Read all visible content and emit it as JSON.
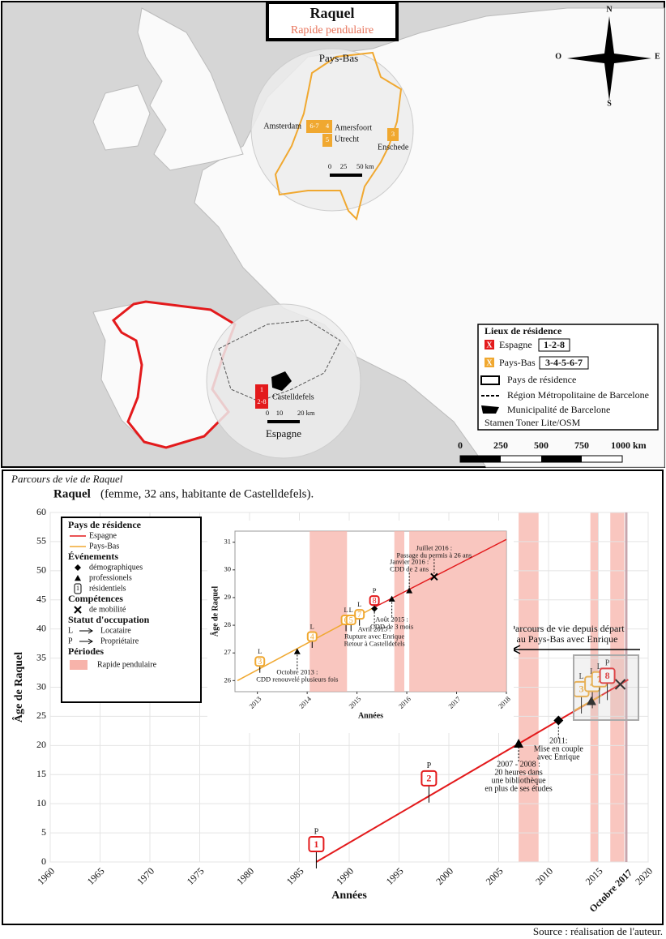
{
  "map": {
    "title": "Raquel",
    "subtitle": "Rapide pendulaire",
    "compass": [
      "N",
      "E",
      "S",
      "O"
    ],
    "places": [
      "Pays-Bas",
      "Amsterdam",
      "Amersfoort",
      "Utrecht",
      "Enschede",
      "Castelldefels",
      "Espagne"
    ],
    "residences": [
      "6-7",
      "4",
      "5",
      "3",
      "1",
      "2-8"
    ],
    "inset_scales": [
      [
        "0",
        "25",
        "50 km"
      ],
      [
        "0",
        "10",
        "20 km"
      ]
    ],
    "legend": {
      "title": "Lieux de résidence",
      "items": [
        {
          "marker": "X",
          "label": "Espagne",
          "ids": "1-2-8",
          "color": "#e31a1c"
        },
        {
          "marker": "X",
          "label": "Pays-Bas",
          "ids": "3-4-5-6-7",
          "color": "#f0a830"
        }
      ],
      "symbols": [
        "Pays de résidence",
        "Région Métropolitaine de Barcelone",
        "Municipalité de Barcelone"
      ],
      "credit": "Stamen Toner Lite/OSM"
    },
    "scale": [
      "0",
      "250",
      "500",
      "750",
      "1000 km"
    ]
  },
  "chart_data": [
    {
      "type": "line",
      "title": "Parcours de vie de Raquel",
      "subject": "Raquel",
      "subtitle": "(femme, 32 ans, habitante de Castelldefels).",
      "xlabel": "Années",
      "ylabel": "Âge de Raquel",
      "xlim": [
        1960,
        2020
      ],
      "xticks": [
        1960,
        1965,
        1970,
        1975,
        1980,
        1985,
        1990,
        1995,
        2000,
        2005,
        2010,
        2015,
        2020
      ],
      "ylim": [
        0,
        60
      ],
      "yticks": [
        0,
        5,
        10,
        15,
        20,
        25,
        30,
        35,
        40,
        45,
        50,
        55,
        60
      ],
      "grid": true,
      "marker_line": {
        "value": 2017.8,
        "label": "Octobre 2017"
      },
      "series": [
        {
          "name": "Espagne",
          "color": "#e31a1c",
          "x": [
            1986.7,
            2018
          ],
          "values": [
            0,
            31.3
          ]
        },
        {
          "name": "Pays-Bas",
          "color": "#f0a830",
          "x": [
            2012.6,
            2015.35
          ],
          "values": [
            26,
            28.65
          ]
        }
      ],
      "periods": {
        "name": "Rapide pendulaire",
        "color": "#f7b3aa",
        "ranges": [
          [
            2007,
            2009
          ],
          [
            2014.2,
            2015
          ],
          [
            2016.2,
            2017.6
          ]
        ]
      },
      "events": [
        {
          "symbol": "triangle",
          "x": 2007,
          "y": 20.3,
          "text": [
            "2007 - 2008 :",
            "20 heures dans",
            "une bibliothèque",
            "en plus de ses études"
          ]
        },
        {
          "symbol": "diamond",
          "x": 2011,
          "y": 24.3,
          "text": [
            "2011:",
            "Mise en couple",
            "avec Enrique"
          ]
        },
        {
          "symbol": "triangle",
          "x": 2014.3,
          "y": 27.6,
          "text": []
        },
        {
          "symbol": "cross",
          "x": 2017.2,
          "y": 30.5,
          "text": []
        }
      ],
      "residences": [
        {
          "label": "1",
          "x": 1986.7,
          "y": 0,
          "status": "P",
          "color": "#e31a1c"
        },
        {
          "label": "2",
          "x": 1998,
          "y": 11.3,
          "status": "P",
          "color": "#e31a1c"
        },
        {
          "label": "3",
          "x": 2013.3,
          "y": 26.6,
          "status": "L",
          "color": "#f0a830"
        },
        {
          "label": "4",
          "x": 2014.4,
          "y": 27.5,
          "status": "L",
          "color": "#f0a830"
        },
        {
          "label": "7",
          "x": 2015.1,
          "y": 28.3,
          "status": "L",
          "color": "#f0a830"
        },
        {
          "label": "8",
          "x": 2015.9,
          "y": 28.9,
          "status": "P",
          "color": "#e31a1c"
        }
      ],
      "annotation": [
        "Parcours de vie depuis départ",
        "au Pays-Bas avec Enrique"
      ],
      "legend": {
        "country_title": "Pays de résidence",
        "events_title": "Événements",
        "events": [
          "démographiques",
          "professionels",
          "résidentiels"
        ],
        "skills_title": "Compétences",
        "skills": [
          "de mobilité"
        ],
        "status_title": "Statut d'occupation",
        "status": [
          {
            "code": "L",
            "label": "Locataire"
          },
          {
            "code": "P",
            "label": "Propriétaire"
          }
        ],
        "periods_title": "Périodes",
        "residence_symbol": "1"
      },
      "source": "Source : réalisation de l'auteur."
    },
    {
      "type": "line",
      "xlabel": "Années",
      "ylabel": "Âge de Raquel",
      "xlim": [
        2012.55,
        2018
      ],
      "xticks": [
        2013,
        2014,
        2015,
        2016,
        2017,
        2018
      ],
      "ylim": [
        25.6,
        31.4
      ],
      "yticks": [
        26,
        27,
        28,
        29,
        30,
        31
      ],
      "grid": false,
      "series": [
        {
          "name": "Espagne",
          "color": "#e31a1c",
          "x": [
            2015.35,
            2018
          ],
          "values": [
            28.65,
            31.1
          ]
        },
        {
          "name": "Pays-Bas",
          "color": "#f0a830",
          "x": [
            2012.6,
            2015.35
          ],
          "values": [
            26,
            28.65
          ]
        }
      ],
      "periods": {
        "name": "Rapide pendulaire",
        "color": "#f7b3aa",
        "ranges": [
          [
            2014.05,
            2014.8
          ],
          [
            2015.75,
            2015.95
          ],
          [
            2016.05,
            2018
          ]
        ]
      },
      "events": [
        {
          "symbol": "triangle",
          "x": 2013.8,
          "y": 27.05,
          "text": [
            "Octobre 2013 :",
            "CDD renouvelé plusieurs fois"
          ]
        },
        {
          "symbol": "diamond",
          "x": 2015.35,
          "y": 28.6,
          "text": [
            "Avril 2015 :",
            "Rupture avec Enrique",
            "Retour à Castelldefels"
          ]
        },
        {
          "symbol": "triangle",
          "x": 2015.7,
          "y": 28.95,
          "text": [
            "Août 2015 :",
            "CDD de 3 mois"
          ]
        },
        {
          "symbol": "triangle",
          "x": 2016.05,
          "y": 29.25,
          "text": [
            "Janvier 2016 :",
            "CDD de 2 ans"
          ]
        },
        {
          "symbol": "cross",
          "x": 2016.55,
          "y": 29.75,
          "text": [
            "Juillet 2016 :",
            "Passage du permis à 26 ans"
          ]
        }
      ],
      "residences": [
        {
          "label": "3",
          "x": 2013.05,
          "y": 26.4,
          "status": "L",
          "color": "#f0a830"
        },
        {
          "label": "4",
          "x": 2014.1,
          "y": 27.3,
          "status": "L",
          "color": "#f0a830"
        },
        {
          "label": "6",
          "x": 2014.78,
          "y": 27.9,
          "status": "L",
          "color": "#f0a830"
        },
        {
          "label": "5",
          "x": 2014.88,
          "y": 27.9,
          "status": "L",
          "color": "#f0a830"
        },
        {
          "label": "7",
          "x": 2015.05,
          "y": 28.1,
          "status": "L",
          "color": "#f0a830"
        },
        {
          "label": "8",
          "x": 2015.35,
          "y": 28.6,
          "status": "P",
          "color": "#e31a1c"
        }
      ]
    }
  ]
}
